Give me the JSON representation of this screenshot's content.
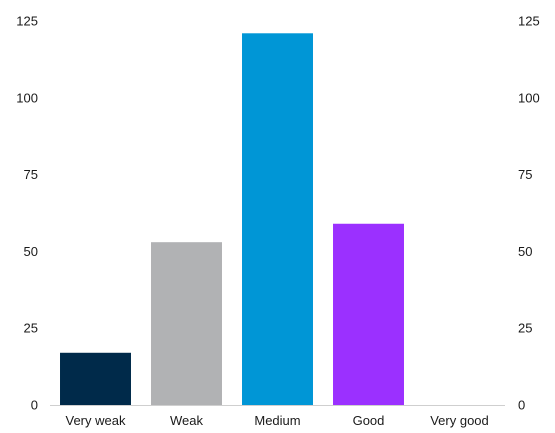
{
  "chart_data": {
    "type": "bar",
    "title": "",
    "xlabel": "",
    "ylabel": "",
    "categories": [
      "Very weak",
      "Weak",
      "Medium",
      "Good",
      "Very good"
    ],
    "values": [
      17,
      53,
      121,
      59,
      0
    ],
    "colors": [
      "#002a4a",
      "#b1b2b4",
      "#0096d6",
      "#9b30ff",
      "#cccccc"
    ],
    "ylim": [
      0,
      125
    ],
    "yticks": [
      "0",
      "25",
      "50",
      "75",
      "100",
      "125"
    ],
    "yticks_right": [
      "0",
      "25",
      "50",
      "75",
      "100",
      "125"
    ],
    "grid": false,
    "legend": "none"
  }
}
